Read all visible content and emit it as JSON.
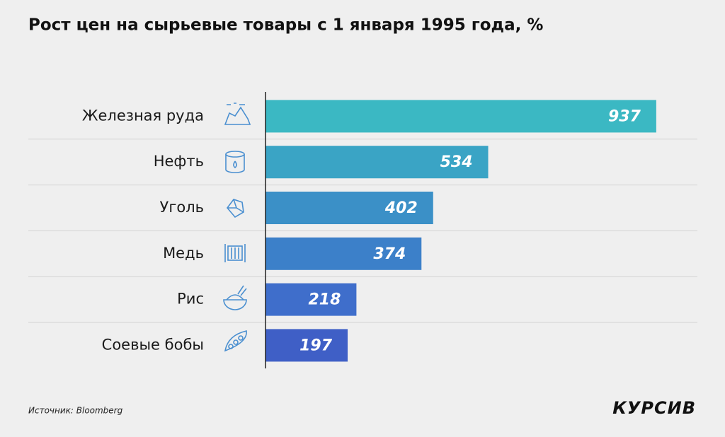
{
  "chart_data": {
    "type": "bar",
    "orientation": "horizontal",
    "title": "Рост цен на сырьевые товары с 1 января 1995 года, %",
    "categories": [
      "Железная руда",
      "Нефть",
      "Уголь",
      "Медь",
      "Рис",
      "Соевые бобы"
    ],
    "values": [
      937,
      534,
      402,
      374,
      218,
      197
    ],
    "colors": [
      "#3bb8c3",
      "#3aa4c5",
      "#3b90c7",
      "#3c80c9",
      "#3f6ecb",
      "#3f5fc6"
    ],
    "xlim": [
      0,
      1000
    ],
    "source": "Источник: Bloomberg",
    "logo": "КУРСИВ"
  }
}
